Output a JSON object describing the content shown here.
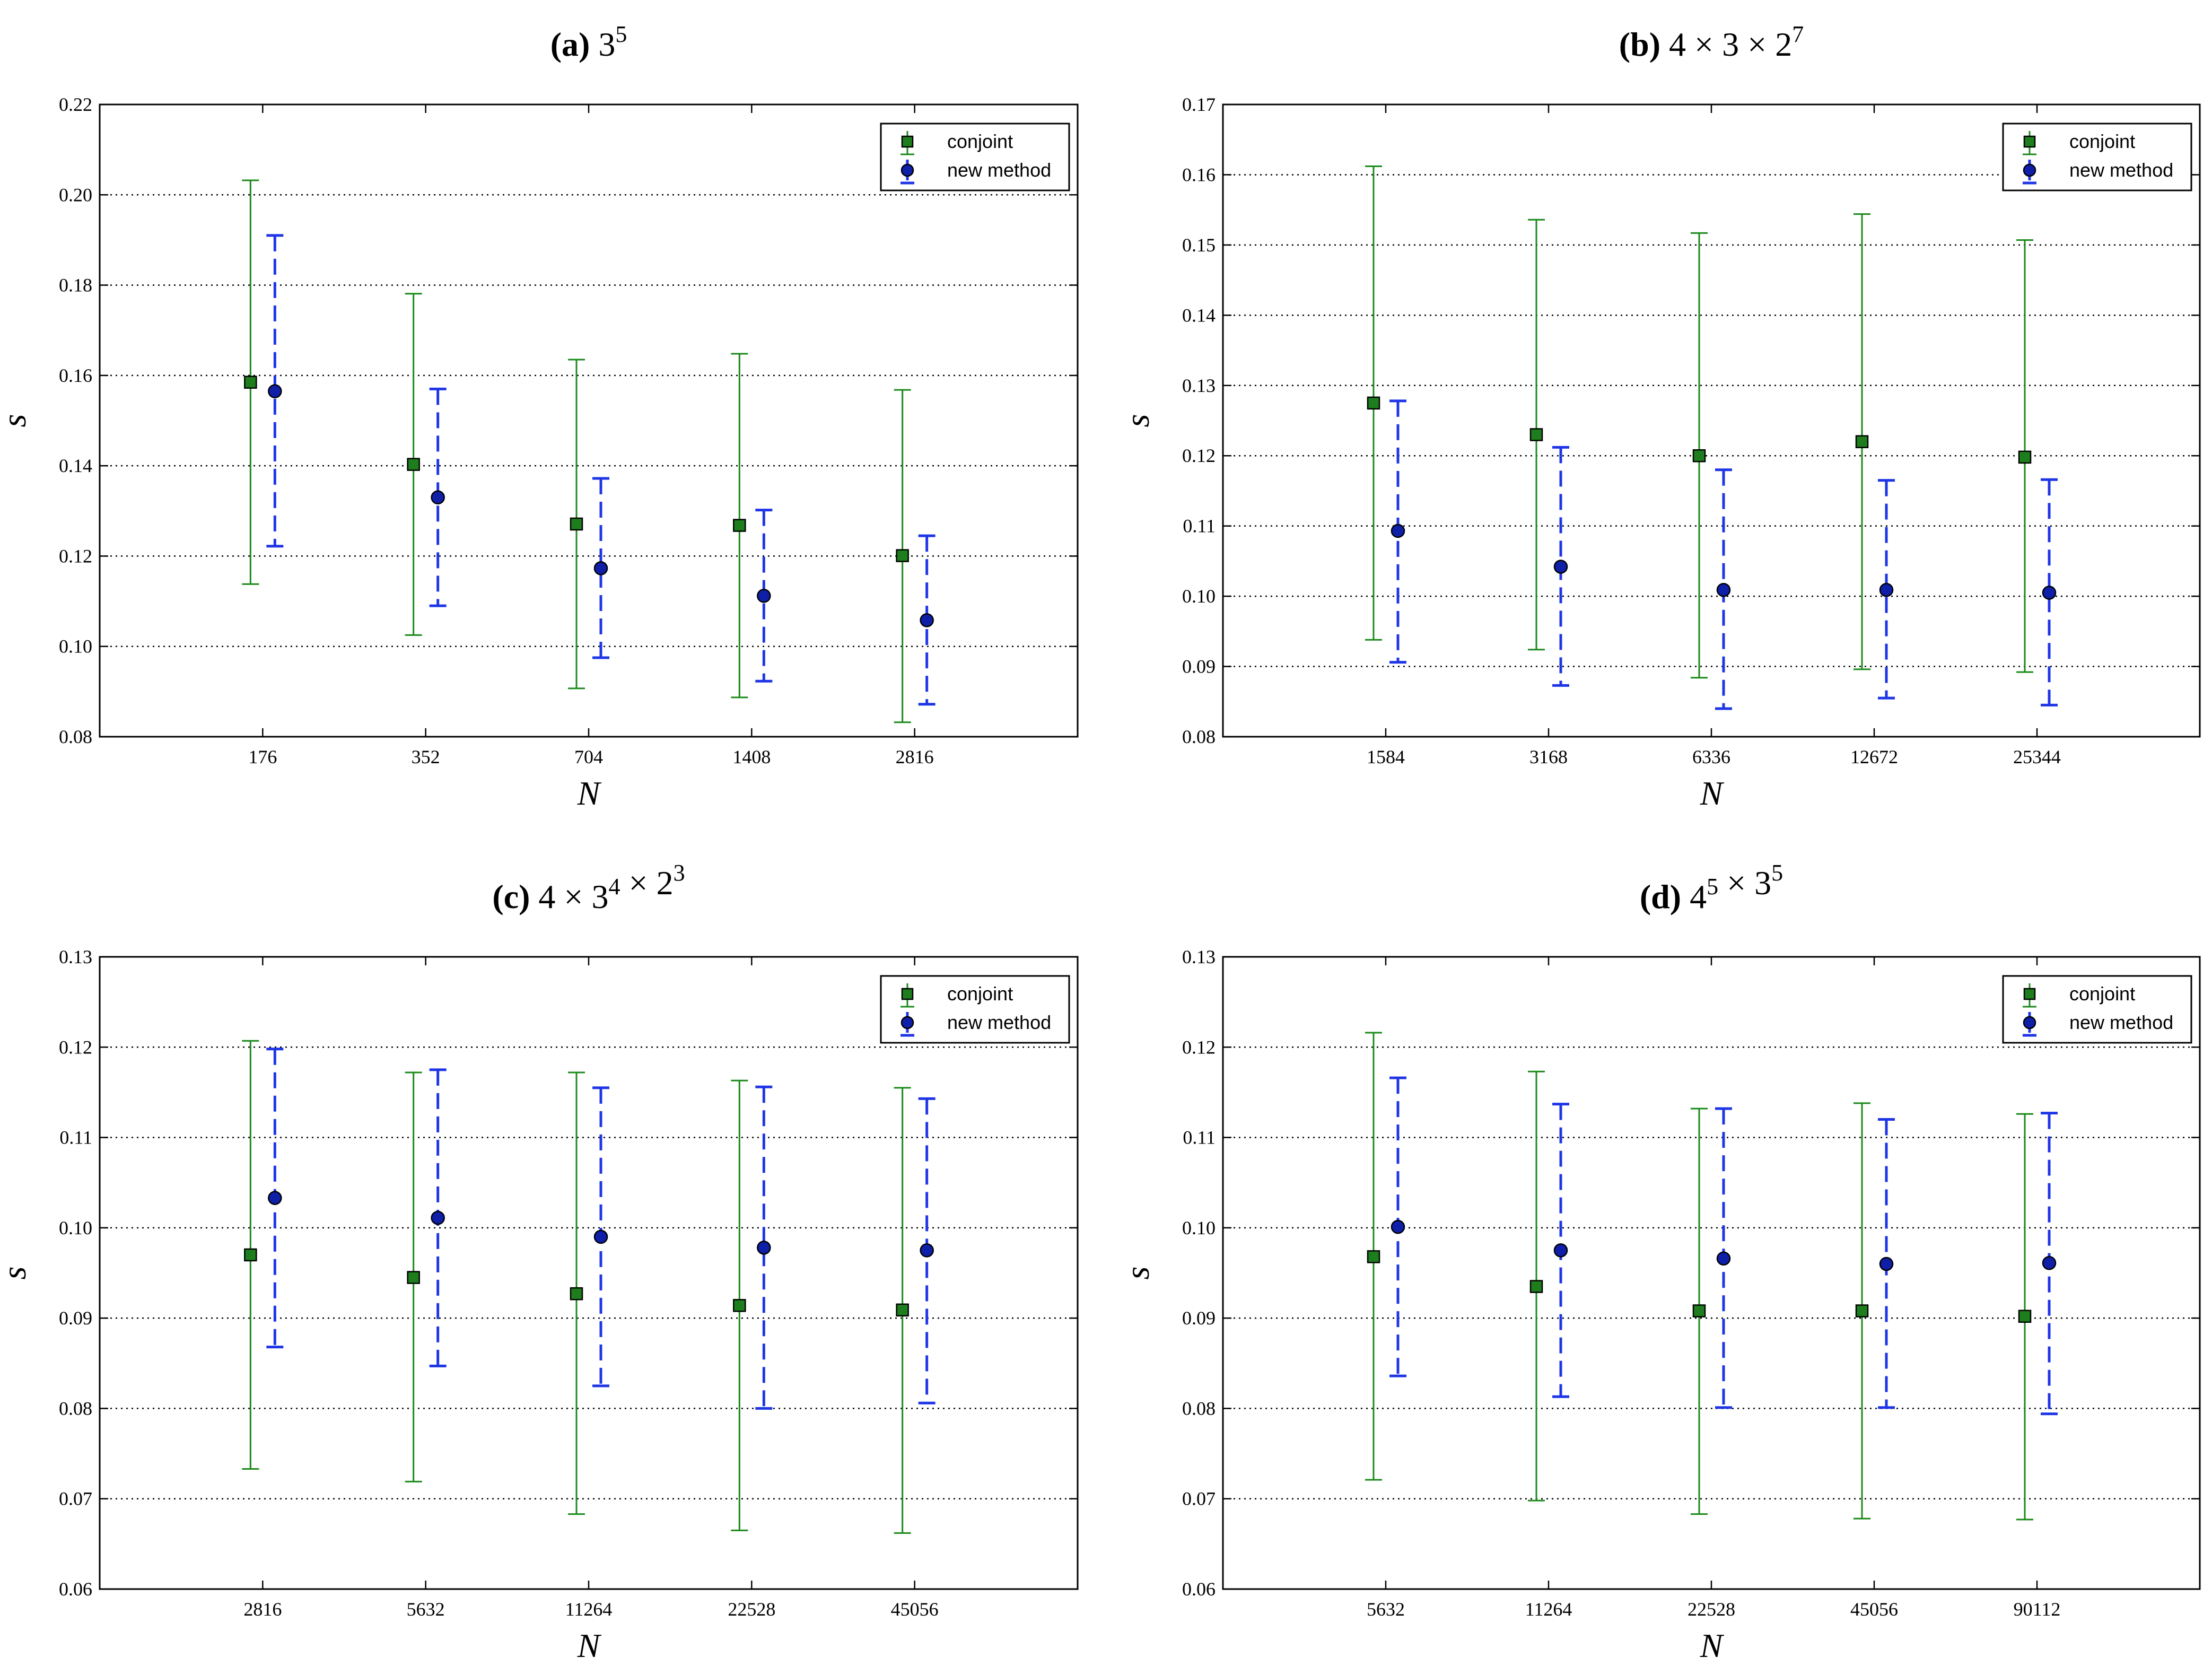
{
  "colors": {
    "conjoint": "#1a8a1a",
    "conjoint_marker": "#1e7e1e",
    "new_method": "#1e35e6",
    "new_method_marker": "#0f1fa8",
    "grid": "#000000"
  },
  "chart_data": [
    {
      "type": "scatter",
      "panel": "a",
      "title": {
        "letter": "(a)",
        "base": "3",
        "sup": "5"
      },
      "title_parts": [
        {
          "text": "3",
          "sup": "5"
        }
      ],
      "xlabel": "N",
      "ylabel": "s",
      "categories": [
        "176",
        "352",
        "704",
        "1408",
        "2816"
      ],
      "ylim": [
        0.08,
        0.22
      ],
      "yticks": [
        "0.08",
        "0.10",
        "0.12",
        "0.14",
        "0.16",
        "0.18",
        "0.20",
        "0.22"
      ],
      "grid": "horizontal dotted",
      "legend_position": "top-right",
      "series": [
        {
          "name": "conjoint",
          "marker": "square",
          "line": "solid",
          "values": [
            0.1585,
            0.1403,
            0.1271,
            0.1268,
            0.1201
          ],
          "lower": [
            0.1138,
            0.1025,
            0.0907,
            0.0887,
            0.0832
          ],
          "upper": [
            0.2032,
            0.1781,
            0.1635,
            0.1648,
            0.1568
          ]
        },
        {
          "name": "new method",
          "marker": "circle",
          "line": "dashed",
          "values": [
            0.1565,
            0.133,
            0.1173,
            0.1112,
            0.1058
          ],
          "lower": [
            0.1222,
            0.109,
            0.0975,
            0.0923,
            0.0872
          ],
          "upper": [
            0.191,
            0.157,
            0.1372,
            0.1302,
            0.1245
          ]
        }
      ]
    },
    {
      "type": "scatter",
      "panel": "b",
      "title_parts": [
        {
          "text": "4 × 3 × 2",
          "sup": "7"
        }
      ],
      "title": {
        "letter": "(b)"
      },
      "xlabel": "N",
      "ylabel": "s",
      "categories": [
        "1584",
        "3168",
        "6336",
        "12672",
        "25344"
      ],
      "ylim": [
        0.08,
        0.17
      ],
      "yticks": [
        "0.08",
        "0.09",
        "0.10",
        "0.11",
        "0.12",
        "0.13",
        "0.14",
        "0.15",
        "0.16",
        "0.17"
      ],
      "grid": "horizontal dotted",
      "legend_position": "top-right",
      "series": [
        {
          "name": "conjoint",
          "marker": "square",
          "line": "solid",
          "values": [
            0.1275,
            0.123,
            0.12,
            0.122,
            0.1198
          ],
          "lower": [
            0.0938,
            0.0924,
            0.0884,
            0.0896,
            0.0892
          ],
          "upper": [
            0.1612,
            0.1536,
            0.1517,
            0.1544,
            0.1507
          ]
        },
        {
          "name": "new method",
          "marker": "circle",
          "line": "dashed",
          "values": [
            0.1093,
            0.1042,
            0.1009,
            0.1009,
            0.1005
          ],
          "lower": [
            0.0906,
            0.0873,
            0.084,
            0.0855,
            0.0845
          ],
          "upper": [
            0.1278,
            0.1212,
            0.118,
            0.1165,
            0.1166
          ]
        }
      ]
    },
    {
      "type": "scatter",
      "panel": "c",
      "title_parts": [
        {
          "text": "4 × 3",
          "sup": "4"
        },
        {
          "text": " × 2",
          "sup": "3"
        }
      ],
      "title": {
        "letter": "(c)"
      },
      "xlabel": "N",
      "ylabel": "s",
      "categories": [
        "2816",
        "5632",
        "11264",
        "22528",
        "45056"
      ],
      "ylim": [
        0.06,
        0.13
      ],
      "yticks": [
        "0.06",
        "0.07",
        "0.08",
        "0.09",
        "0.10",
        "0.11",
        "0.12",
        "0.13"
      ],
      "grid": "horizontal dotted",
      "legend_position": "top-right",
      "series": [
        {
          "name": "conjoint",
          "marker": "square",
          "line": "solid",
          "values": [
            0.097,
            0.0945,
            0.0927,
            0.0914,
            0.0909
          ],
          "lower": [
            0.0733,
            0.0719,
            0.0683,
            0.0665,
            0.0662
          ],
          "upper": [
            0.1207,
            0.1172,
            0.1172,
            0.1163,
            0.1155
          ]
        },
        {
          "name": "new method",
          "marker": "circle",
          "line": "dashed",
          "values": [
            0.1033,
            0.1011,
            0.099,
            0.0978,
            0.0975
          ],
          "lower": [
            0.0868,
            0.0847,
            0.0825,
            0.08,
            0.0806
          ],
          "upper": [
            0.1198,
            0.1175,
            0.1155,
            0.1156,
            0.1143
          ]
        }
      ]
    },
    {
      "type": "scatter",
      "panel": "d",
      "title_parts": [
        {
          "text": "4",
          "sup": "5"
        },
        {
          "text": " × 3",
          "sup": "5"
        }
      ],
      "title": {
        "letter": "(d)"
      },
      "xlabel": "N",
      "ylabel": "s",
      "categories": [
        "5632",
        "11264",
        "22528",
        "45056",
        "90112"
      ],
      "ylim": [
        0.06,
        0.13
      ],
      "yticks": [
        "0.06",
        "0.07",
        "0.08",
        "0.09",
        "0.10",
        "0.11",
        "0.12",
        "0.13"
      ],
      "grid": "horizontal dotted",
      "legend_position": "top-right",
      "series": [
        {
          "name": "conjoint",
          "marker": "square",
          "line": "solid",
          "values": [
            0.0968,
            0.0935,
            0.0908,
            0.0908,
            0.0902
          ],
          "lower": [
            0.0721,
            0.0698,
            0.0683,
            0.0678,
            0.0677
          ],
          "upper": [
            0.1216,
            0.1173,
            0.1132,
            0.1138,
            0.1126
          ]
        },
        {
          "name": "new method",
          "marker": "circle",
          "line": "dashed",
          "values": [
            0.1001,
            0.0975,
            0.0966,
            0.096,
            0.0961
          ],
          "lower": [
            0.0836,
            0.0813,
            0.0801,
            0.0801,
            0.0794
          ],
          "upper": [
            0.1166,
            0.1137,
            0.1132,
            0.112,
            0.1127
          ]
        }
      ]
    }
  ]
}
